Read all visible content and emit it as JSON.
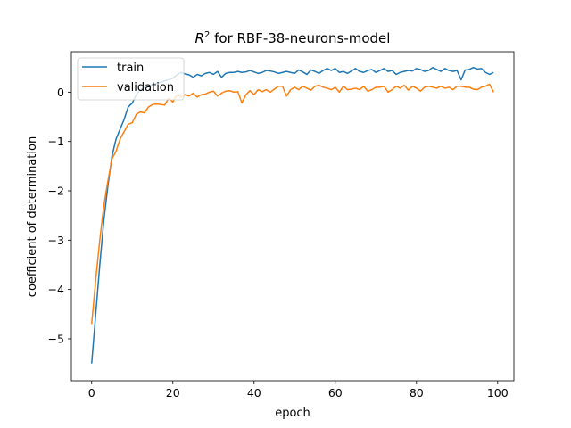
{
  "chart_data": {
    "type": "line",
    "title_prefix": "R",
    "title_superscript": "2",
    "title_suffix": " for RBF-38-neurons-model",
    "xlabel": "epoch",
    "ylabel": "coefficient of determination",
    "xlim": [
      -5,
      104
    ],
    "ylim": [
      -5.85,
      0.82
    ],
    "xticks": [
      0,
      20,
      40,
      60,
      80,
      100
    ],
    "yticks": [
      -5,
      -4,
      -3,
      -2,
      -1,
      0
    ],
    "ytick_labels": [
      "−5",
      "−4",
      "−3",
      "−2",
      "−1",
      "0"
    ],
    "grid": false,
    "legend_position": "upper-left",
    "x": [
      0,
      1,
      2,
      3,
      4,
      5,
      6,
      7,
      8,
      9,
      10,
      11,
      12,
      13,
      14,
      15,
      16,
      17,
      18,
      19,
      20,
      21,
      22,
      23,
      24,
      25,
      26,
      27,
      28,
      29,
      30,
      31,
      32,
      33,
      34,
      35,
      36,
      37,
      38,
      39,
      40,
      41,
      42,
      43,
      44,
      45,
      46,
      47,
      48,
      49,
      50,
      51,
      52,
      53,
      54,
      55,
      56,
      57,
      58,
      59,
      60,
      61,
      62,
      63,
      64,
      65,
      66,
      67,
      68,
      69,
      70,
      71,
      72,
      73,
      74,
      75,
      76,
      77,
      78,
      79,
      80,
      81,
      82,
      83,
      84,
      85,
      86,
      87,
      88,
      89,
      90,
      91,
      92,
      93,
      94,
      95,
      96,
      97,
      98,
      99
    ],
    "series": [
      {
        "name": "train",
        "color": "#1f77b4",
        "values": [
          -5.5,
          -4.5,
          -3.5,
          -2.6,
          -1.9,
          -1.3,
          -0.95,
          -0.75,
          -0.55,
          -0.3,
          -0.22,
          -0.05,
          0.05,
          0.1,
          0.13,
          0.15,
          0.18,
          0.2,
          0.23,
          0.25,
          0.28,
          0.35,
          0.4,
          0.37,
          0.35,
          0.3,
          0.36,
          0.33,
          0.38,
          0.4,
          0.36,
          0.42,
          0.3,
          0.38,
          0.4,
          0.4,
          0.42,
          0.4,
          0.41,
          0.44,
          0.41,
          0.38,
          0.4,
          0.44,
          0.43,
          0.41,
          0.38,
          0.4,
          0.42,
          0.4,
          0.38,
          0.45,
          0.41,
          0.36,
          0.45,
          0.42,
          0.38,
          0.44,
          0.48,
          0.44,
          0.48,
          0.4,
          0.42,
          0.38,
          0.43,
          0.48,
          0.42,
          0.4,
          0.44,
          0.46,
          0.4,
          0.44,
          0.48,
          0.42,
          0.44,
          0.36,
          0.4,
          0.42,
          0.44,
          0.43,
          0.48,
          0.46,
          0.42,
          0.44,
          0.5,
          0.46,
          0.42,
          0.48,
          0.44,
          0.42,
          0.44,
          0.25,
          0.45,
          0.46,
          0.5,
          0.47,
          0.48,
          0.4,
          0.36,
          0.4
        ]
      },
      {
        "name": "validation",
        "color": "#ff7f0e",
        "values": [
          -4.7,
          -3.8,
          -3.0,
          -2.3,
          -1.8,
          -1.35,
          -1.2,
          -0.95,
          -0.8,
          -0.65,
          -0.62,
          -0.45,
          -0.4,
          -0.42,
          -0.3,
          -0.25,
          -0.24,
          -0.25,
          -0.26,
          -0.12,
          -0.2,
          -0.05,
          -0.1,
          -0.05,
          -0.08,
          -0.02,
          -0.1,
          -0.05,
          -0.04,
          0.0,
          0.02,
          -0.08,
          -0.02,
          0.02,
          0.03,
          0.0,
          0.01,
          -0.22,
          -0.05,
          0.03,
          -0.05,
          0.05,
          0.01,
          0.05,
          0.0,
          0.06,
          0.12,
          0.12,
          -0.08,
          0.05,
          0.1,
          0.05,
          0.12,
          0.08,
          0.04,
          0.12,
          0.14,
          0.1,
          0.08,
          0.05,
          0.1,
          0.0,
          0.12,
          0.05,
          0.06,
          0.08,
          0.05,
          0.12,
          0.02,
          0.05,
          0.1,
          0.1,
          0.12,
          0.0,
          0.05,
          0.12,
          0.08,
          0.14,
          0.04,
          0.12,
          0.08,
          0.02,
          0.1,
          0.12,
          0.1,
          0.08,
          0.12,
          0.08,
          0.1,
          0.05,
          0.12,
          0.12,
          0.1,
          0.1,
          0.06,
          0.05,
          0.1,
          0.12,
          0.16,
          0.0
        ]
      }
    ]
  }
}
